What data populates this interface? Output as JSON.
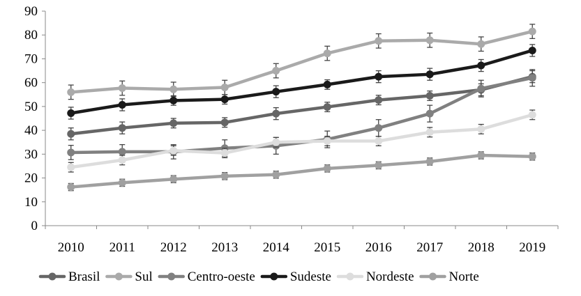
{
  "chart_data": {
    "type": "line",
    "title": "",
    "xlabel": "",
    "ylabel": "",
    "categories": [
      "2010",
      "2011",
      "2012",
      "2013",
      "2014",
      "2015",
      "2016",
      "2017",
      "2018",
      "2019"
    ],
    "ylim": [
      0,
      90
    ],
    "yticks": [
      0,
      10,
      20,
      30,
      40,
      50,
      60,
      70,
      80,
      90
    ],
    "grid": false,
    "legend_position": "bottom",
    "error_bars": true,
    "series": [
      {
        "name": "Brasil",
        "color": "#666666",
        "values": [
          38.5,
          41,
          43,
          43.3,
          47,
          49.8,
          52.7,
          54.5,
          57,
          62.5
        ],
        "errors": [
          2.5,
          2.5,
          2,
          2,
          2.5,
          2,
          2,
          2,
          2.5,
          2.5
        ]
      },
      {
        "name": "Sul",
        "color": "#aaaaaa",
        "values": [
          56,
          57.7,
          57.2,
          58,
          65,
          72.3,
          77.5,
          77.8,
          76.2,
          81.5
        ],
        "errors": [
          3,
          3,
          3,
          3,
          3,
          3,
          3,
          3,
          3,
          3
        ]
      },
      {
        "name": "Centro-oeste",
        "color": "#808080",
        "values": [
          30.7,
          31,
          31,
          32.5,
          33.5,
          36.2,
          41,
          47,
          57.5,
          62
        ],
        "errors": [
          3,
          3,
          3,
          3.5,
          3.5,
          3.5,
          3.5,
          3.5,
          3.5,
          3.5
        ]
      },
      {
        "name": "Sudeste",
        "color": "#1a1a1a",
        "values": [
          47.2,
          50.7,
          52.5,
          53,
          56.2,
          59.2,
          62.5,
          63.5,
          67.2,
          73.5
        ],
        "errors": [
          2.5,
          2.5,
          2,
          2,
          2.5,
          2,
          2.5,
          2.5,
          2.5,
          2.5
        ]
      },
      {
        "name": "Nordeste",
        "color": "#dddddd",
        "values": [
          24.5,
          27.5,
          31.5,
          30.5,
          35,
          35.5,
          35.5,
          39.2,
          40.5,
          46.5
        ],
        "errors": [
          2,
          2,
          2,
          2,
          2,
          2,
          2,
          2,
          2,
          2
        ]
      },
      {
        "name": "Norte",
        "color": "#a0a0a0",
        "values": [
          16.2,
          18,
          19.5,
          20.8,
          21.4,
          24,
          25.3,
          26.9,
          29.5,
          29
        ],
        "errors": [
          1.5,
          1.5,
          1.5,
          1.5,
          1.5,
          1.5,
          1.5,
          1.5,
          1.5,
          1.5
        ]
      }
    ]
  }
}
